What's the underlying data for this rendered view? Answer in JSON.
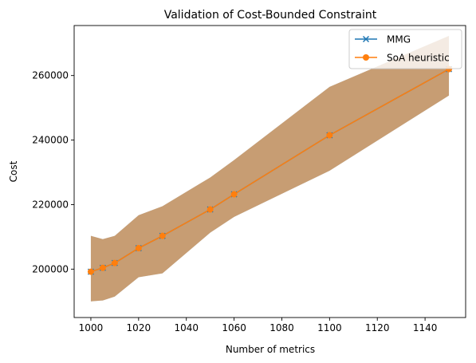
{
  "chart_data": {
    "type": "line",
    "title": "Validation of Cost-Bounded Constraint",
    "xlabel": "Number of metrics",
    "ylabel": "Cost",
    "xlim": [
      993,
      1157
    ],
    "ylim": [
      185000,
      275500
    ],
    "xticks": [
      1000,
      1020,
      1040,
      1060,
      1080,
      1100,
      1120,
      1140
    ],
    "yticks": [
      200000,
      220000,
      240000,
      260000
    ],
    "grid": false,
    "legend": "top-right",
    "x": [
      1000,
      1005,
      1010,
      1020,
      1030,
      1050,
      1060,
      1100,
      1150
    ],
    "series": [
      {
        "name": "MMG",
        "marker": "x",
        "color": "#1f77b4",
        "values": [
          199200,
          200400,
          201900,
          206500,
          210300,
          218500,
          223200,
          241500,
          262000
        ]
      },
      {
        "name": "SoA heuristic",
        "marker": "o",
        "color": "#ff7f0e",
        "values": [
          199200,
          200400,
          201900,
          206500,
          210300,
          218500,
          223200,
          241500,
          262000
        ]
      }
    ],
    "bands": [
      {
        "color": "#1f77b4",
        "lower": [
          190000,
          190300,
          191500,
          197500,
          198700,
          211300,
          216200,
          230500,
          253800
        ],
        "upper": [
          210300,
          209300,
          210300,
          216700,
          219500,
          228400,
          233800,
          256500,
          272300
        ]
      },
      {
        "color": "#ff7f0e",
        "lower": [
          190000,
          190300,
          191500,
          197500,
          198700,
          211300,
          216200,
          230500,
          253800
        ],
        "upper": [
          210300,
          209300,
          210300,
          216700,
          219500,
          228400,
          233800,
          256500,
          272300
        ]
      }
    ]
  }
}
